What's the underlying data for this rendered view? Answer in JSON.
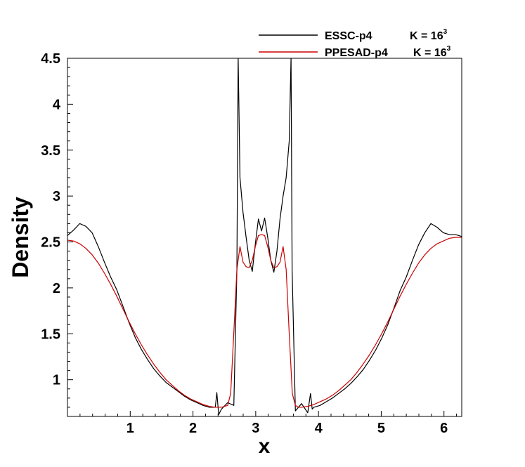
{
  "chart_data": {
    "type": "line",
    "title": "",
    "xlabel": "x",
    "ylabel": "Density",
    "xlim": [
      0,
      6.2832
    ],
    "ylim": [
      0.6,
      4.5
    ],
    "xticks": [
      1,
      2,
      3,
      4,
      5,
      6
    ],
    "yticks": [
      1,
      1.5,
      2,
      2.5,
      3,
      3.5,
      4,
      4.5
    ],
    "grid": false,
    "legend_position": "top-right",
    "series": [
      {
        "name": "ESSC-p4",
        "k_label": "K = 16",
        "k_sup": "3",
        "color": "#000000",
        "x": [
          0.0,
          0.098,
          0.196,
          0.294,
          0.393,
          0.491,
          0.589,
          0.687,
          0.785,
          0.884,
          0.982,
          1.08,
          1.178,
          1.276,
          1.374,
          1.473,
          1.571,
          1.669,
          1.767,
          1.865,
          1.963,
          2.062,
          2.16,
          2.258,
          2.356,
          2.38,
          2.41,
          2.454,
          2.553,
          2.651,
          2.7,
          2.72,
          2.749,
          2.798,
          2.847,
          2.896,
          2.945,
          2.994,
          3.043,
          3.093,
          3.142,
          3.191,
          3.24,
          3.289,
          3.338,
          3.387,
          3.436,
          3.485,
          3.534,
          3.563,
          3.58,
          3.632,
          3.73,
          3.829,
          3.873,
          3.9,
          3.927,
          4.025,
          4.123,
          4.222,
          4.32,
          4.418,
          4.516,
          4.614,
          4.712,
          4.811,
          4.909,
          5.007,
          5.105,
          5.203,
          5.301,
          5.4,
          5.498,
          5.596,
          5.694,
          5.792,
          5.89,
          5.989,
          6.087,
          6.185,
          6.283
        ],
        "y": [
          2.57,
          2.63,
          2.7,
          2.67,
          2.6,
          2.45,
          2.28,
          2.12,
          1.98,
          1.8,
          1.62,
          1.46,
          1.33,
          1.22,
          1.12,
          1.04,
          0.97,
          0.92,
          0.87,
          0.82,
          0.78,
          0.75,
          0.72,
          0.7,
          0.7,
          0.86,
          0.62,
          0.68,
          0.75,
          0.72,
          2.2,
          4.52,
          3.2,
          2.82,
          2.55,
          2.3,
          2.18,
          2.48,
          2.75,
          2.62,
          2.76,
          2.55,
          2.3,
          2.17,
          2.4,
          2.75,
          3.0,
          3.2,
          3.6,
          4.52,
          2.2,
          0.66,
          0.74,
          0.64,
          0.85,
          0.68,
          0.7,
          0.72,
          0.76,
          0.8,
          0.85,
          0.9,
          0.96,
          1.03,
          1.11,
          1.21,
          1.32,
          1.45,
          1.6,
          1.78,
          1.97,
          2.12,
          2.3,
          2.47,
          2.6,
          2.7,
          2.66,
          2.6,
          2.58,
          2.58,
          2.56
        ]
      },
      {
        "name": "PPESAD-p4",
        "k_label": "K = 16",
        "k_sup": "3",
        "color": "#cc0000",
        "x": [
          0.0,
          0.098,
          0.196,
          0.294,
          0.393,
          0.491,
          0.589,
          0.687,
          0.785,
          0.884,
          0.982,
          1.08,
          1.178,
          1.276,
          1.374,
          1.473,
          1.571,
          1.669,
          1.767,
          1.865,
          1.963,
          2.062,
          2.16,
          2.258,
          2.356,
          2.454,
          2.553,
          2.601,
          2.65,
          2.7,
          2.749,
          2.798,
          2.847,
          2.896,
          2.945,
          2.994,
          3.043,
          3.093,
          3.142,
          3.191,
          3.24,
          3.289,
          3.338,
          3.387,
          3.436,
          3.485,
          3.534,
          3.583,
          3.632,
          3.68,
          3.73,
          3.829,
          3.927,
          4.025,
          4.123,
          4.222,
          4.32,
          4.418,
          4.516,
          4.614,
          4.712,
          4.811,
          4.909,
          5.007,
          5.105,
          5.203,
          5.301,
          5.4,
          5.498,
          5.596,
          5.694,
          5.792,
          5.89,
          5.989,
          6.087,
          6.185,
          6.283
        ],
        "y": [
          2.52,
          2.51,
          2.48,
          2.43,
          2.36,
          2.27,
          2.16,
          2.04,
          1.91,
          1.77,
          1.63,
          1.5,
          1.38,
          1.27,
          1.17,
          1.08,
          1.0,
          0.94,
          0.88,
          0.83,
          0.79,
          0.76,
          0.73,
          0.71,
          0.7,
          0.7,
          0.72,
          0.85,
          1.5,
          2.2,
          2.45,
          2.28,
          2.23,
          2.22,
          2.3,
          2.45,
          2.57,
          2.58,
          2.57,
          2.45,
          2.3,
          2.22,
          2.23,
          2.28,
          2.45,
          2.2,
          1.5,
          0.85,
          0.72,
          0.7,
          0.7,
          0.71,
          0.73,
          0.76,
          0.79,
          0.83,
          0.88,
          0.94,
          1.0,
          1.08,
          1.17,
          1.27,
          1.38,
          1.5,
          1.63,
          1.77,
          1.91,
          2.04,
          2.16,
          2.27,
          2.36,
          2.43,
          2.48,
          2.51,
          2.54,
          2.55,
          2.55
        ]
      }
    ]
  }
}
